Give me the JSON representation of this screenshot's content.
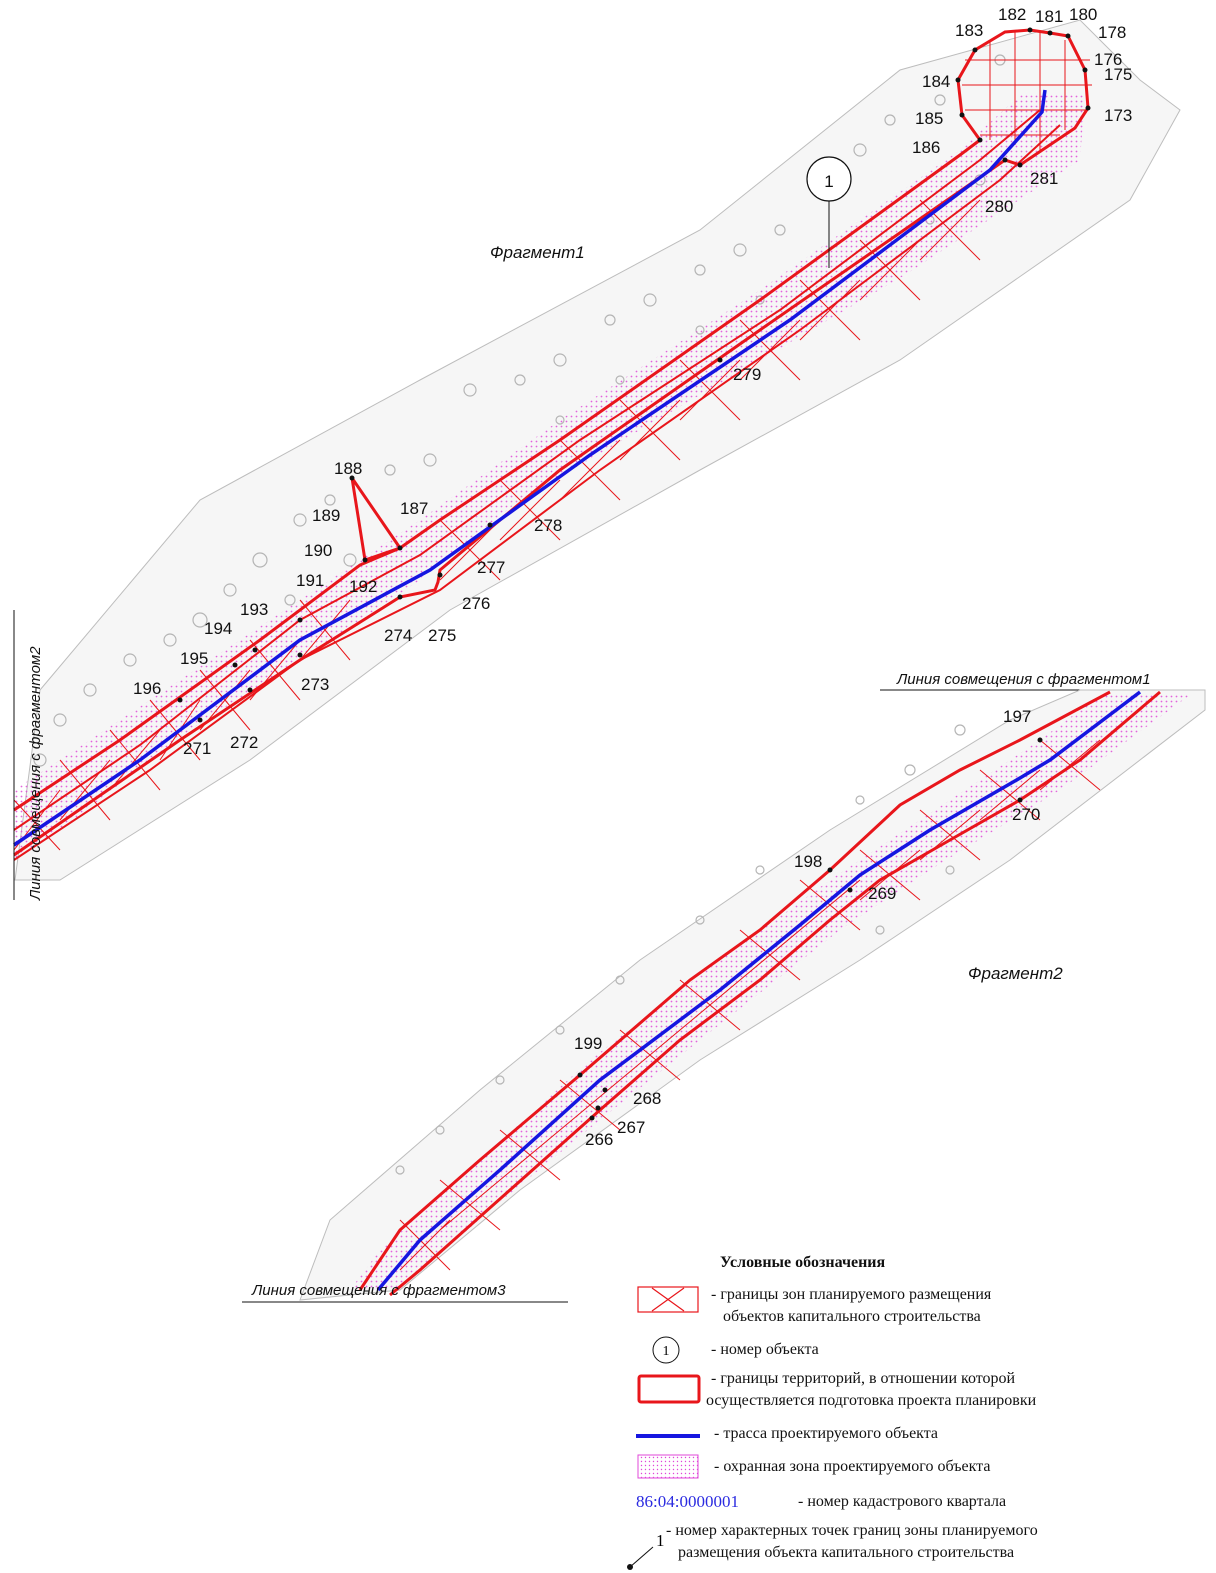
{
  "fragments": {
    "fragment1_title": "Фрагмент1",
    "fragment2_title": "Фрагмент2"
  },
  "match_lines": {
    "with_fragment1": "Линия совмещения с фрагментом1",
    "with_fragment2": "Линия совмещения с фрагментом2",
    "with_fragment3": "Линия совмещения с фрагментом3"
  },
  "object_marker": "1",
  "point_labels": {
    "p173": "173",
    "p175": "175",
    "p176": "176",
    "p178": "178",
    "p180": "180",
    "p181": "181",
    "p182": "182",
    "p183": "183",
    "p184": "184",
    "p185": "185",
    "p186": "186",
    "p187": "187",
    "p188": "188",
    "p189": "189",
    "p190": "190",
    "p191": "191",
    "p192": "192",
    "p193": "193",
    "p194": "194",
    "p195": "195",
    "p196": "196",
    "p197": "197",
    "p198": "198",
    "p199": "199",
    "p266": "266",
    "p267": "267",
    "p268": "268",
    "p269": "269",
    "p270": "270",
    "p271": "271",
    "p272": "272",
    "p273": "273",
    "p274": "274",
    "p275": "275",
    "p276": "276",
    "p277": "277",
    "p278": "278",
    "p279": "279",
    "p280": "280",
    "p281": "281"
  },
  "legend": {
    "title": "Условные обозначения",
    "zone_line1": "- границы зон планируемого размещения",
    "zone_line2": "объектов капитального строительства",
    "object_symbol": "1",
    "object_text": "- номер объекта",
    "territory_line1": "- границы территорий, в отношении которой",
    "territory_line2": "осуществляется подготовка проекта планировки",
    "route_text": "- трасса проектируемого объекта",
    "protect_text": "- охранная зона проектируемого объекта",
    "cadastral_code": "86:04:0000001",
    "cadastral_text": "- номер кадастрового квартала",
    "points_symbol": "1",
    "points_line1": "- номер характерных точек границ зоны планируемого",
    "points_line2": "размещения объекта капитального строительства"
  },
  "colors": {
    "boundary": "#e8161b",
    "route": "#1616e0",
    "protect_dots": "#e048d8",
    "cadastral": "#2a2ae0",
    "background_topo": "#c8c8c8"
  }
}
